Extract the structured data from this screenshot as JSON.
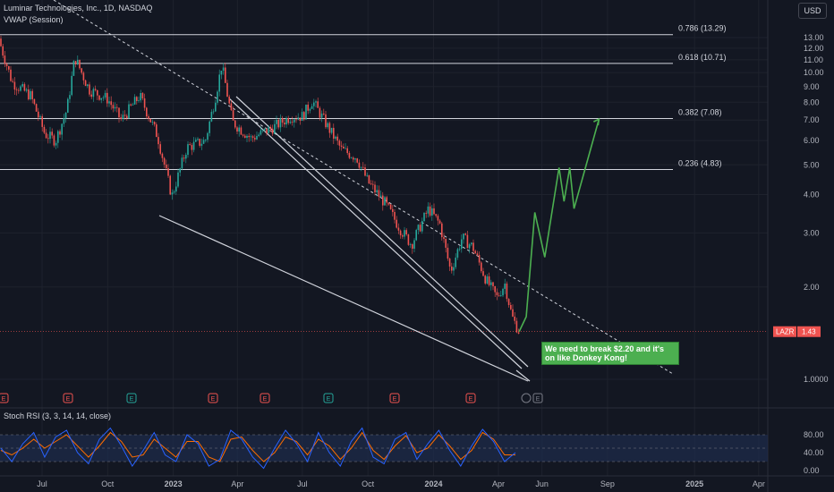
{
  "header": {
    "symbol_title": "Luminar Technologies, Inc., 1D, NASDAQ",
    "indicator": "VWAP (Session)",
    "currency_button": "USD"
  },
  "oscillator": {
    "label": "Stoch RSI (3, 3, 14, 14, close)"
  },
  "annotation": {
    "text": "We need to break $2.20 and it's on like Donkey Kong!"
  },
  "price_tag": {
    "ticker": "LAZR",
    "value": "1.43"
  },
  "colors": {
    "background": "#131722",
    "up": "#26a69a",
    "down": "#ef5350",
    "projection": "#4caf50",
    "fib_line": "#d1d4dc",
    "stoch_k": "#2962ff",
    "stoch_d": "#ff6d00"
  },
  "chart_data": [
    {
      "type": "candlestick",
      "scale": "log",
      "y_ticks": [
        "1.0000",
        "2.00",
        "3.00",
        "4.00",
        "5.00",
        "6.00",
        "7.00",
        "8.00",
        "9.00",
        "10.00",
        "11.00",
        "12.00",
        "13.00"
      ],
      "y_tick_values": [
        1,
        2,
        3,
        4,
        5,
        6,
        7,
        8,
        9,
        10,
        11,
        12,
        13
      ],
      "x_ticks": [
        "Jul",
        "Oct",
        "2023",
        "Apr",
        "Jul",
        "Oct",
        "2024",
        "Apr",
        "Jun",
        "Sep",
        "2025",
        "Apr"
      ],
      "x_tick_dates": [
        "2022-07-01",
        "2022-10-01",
        "2023-01-01",
        "2023-04-01",
        "2023-07-01",
        "2023-10-01",
        "2024-01-01",
        "2024-04-01",
        "2024-06-01",
        "2024-09-01",
        "2025-01-01",
        "2025-04-01"
      ],
      "fib_levels": [
        {
          "label": "0.786 (13.29)",
          "value": 13.29
        },
        {
          "label": "0.618 (10.71)",
          "value": 10.71
        },
        {
          "label": "0.382 (7.08)",
          "value": 7.08
        },
        {
          "label": "0.236 (4.83)",
          "value": 4.83
        }
      ],
      "price_path": [
        {
          "date": "2022-05-01",
          "close": 12.9
        },
        {
          "date": "2022-05-20",
          "close": 9.3
        },
        {
          "date": "2022-06-15",
          "close": 8.4
        },
        {
          "date": "2022-07-05",
          "close": 6.3
        },
        {
          "date": "2022-07-20",
          "close": 6.0
        },
        {
          "date": "2022-08-05",
          "close": 7.6
        },
        {
          "date": "2022-08-16",
          "close": 11.2
        },
        {
          "date": "2022-09-05",
          "close": 8.8
        },
        {
          "date": "2022-10-01",
          "close": 8.2
        },
        {
          "date": "2022-10-20",
          "close": 7.0
        },
        {
          "date": "2022-11-15",
          "close": 8.4
        },
        {
          "date": "2022-12-10",
          "close": 6.2
        },
        {
          "date": "2022-12-30",
          "close": 3.95
        },
        {
          "date": "2023-01-20",
          "close": 5.7
        },
        {
          "date": "2023-02-15",
          "close": 6.0
        },
        {
          "date": "2023-03-01",
          "close": 8.3
        },
        {
          "date": "2023-03-10",
          "close": 10.6
        },
        {
          "date": "2023-03-25",
          "close": 6.9
        },
        {
          "date": "2023-04-20",
          "close": 6.1
        },
        {
          "date": "2023-05-20",
          "close": 6.6
        },
        {
          "date": "2023-06-15",
          "close": 7.2
        },
        {
          "date": "2023-07-01",
          "close": 7.2
        },
        {
          "date": "2023-07-15",
          "close": 8.1
        },
        {
          "date": "2023-08-05",
          "close": 6.7
        },
        {
          "date": "2023-08-25",
          "close": 5.6
        },
        {
          "date": "2023-09-15",
          "close": 5.3
        },
        {
          "date": "2023-10-01",
          "close": 4.4
        },
        {
          "date": "2023-10-25",
          "close": 3.75
        },
        {
          "date": "2023-11-15",
          "close": 3.1
        },
        {
          "date": "2023-12-01",
          "close": 2.75
        },
        {
          "date": "2023-12-25",
          "close": 3.6
        },
        {
          "date": "2024-01-10",
          "close": 3.2
        },
        {
          "date": "2024-01-25",
          "close": 2.25
        },
        {
          "date": "2024-02-10",
          "close": 2.9
        },
        {
          "date": "2024-02-25",
          "close": 2.7
        },
        {
          "date": "2024-03-15",
          "close": 2.1
        },
        {
          "date": "2024-03-30",
          "close": 1.85
        },
        {
          "date": "2024-04-10",
          "close": 2.05
        },
        {
          "date": "2024-04-20",
          "close": 1.6
        },
        {
          "date": "2024-04-30",
          "close": 1.43
        }
      ],
      "projection_path": [
        {
          "date": "2024-05-10",
          "close": 1.6
        },
        {
          "date": "2024-05-22",
          "close": 3.5
        },
        {
          "date": "2024-06-05",
          "close": 2.5
        },
        {
          "date": "2024-06-25",
          "close": 4.9
        },
        {
          "date": "2024-07-02",
          "close": 3.8
        },
        {
          "date": "2024-07-10",
          "close": 4.9
        },
        {
          "date": "2024-07-16",
          "close": 3.6
        },
        {
          "date": "2024-08-20",
          "close": 7.05
        }
      ],
      "last_price": 1.43
    },
    {
      "type": "line",
      "name": "Stoch RSI",
      "y_ticks": [
        "80.00",
        "40.00",
        "0.00"
      ],
      "y_tick_values": [
        80,
        40,
        0
      ],
      "bands": [
        80,
        50,
        20
      ],
      "series_k": [
        50,
        20,
        60,
        85,
        30,
        75,
        90,
        40,
        15,
        70,
        95,
        55,
        10,
        45,
        85,
        35,
        20,
        80,
        60,
        10,
        25,
        90,
        70,
        30,
        5,
        50,
        90,
        60,
        20,
        85,
        40,
        10,
        65,
        95,
        30,
        15,
        70,
        85,
        25,
        60,
        90,
        45,
        10,
        55,
        92,
        65,
        20,
        40
      ],
      "series_d": [
        45,
        35,
        50,
        70,
        50,
        65,
        80,
        55,
        30,
        55,
        85,
        65,
        30,
        35,
        70,
        50,
        30,
        65,
        65,
        30,
        20,
        70,
        75,
        45,
        20,
        40,
        75,
        65,
        35,
        70,
        55,
        25,
        50,
        85,
        45,
        25,
        55,
        78,
        40,
        50,
        80,
        55,
        25,
        45,
        85,
        70,
        35,
        35
      ]
    }
  ]
}
